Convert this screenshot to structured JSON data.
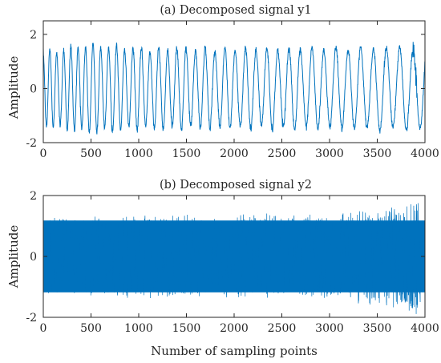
{
  "chart_data": [
    {
      "type": "line",
      "title": "(a) Decomposed signal y1",
      "xlabel": "",
      "ylabel": "Amplitude",
      "xlim": [
        0,
        4000
      ],
      "ylim": [
        -2,
        2.5
      ],
      "xticks": [
        0,
        500,
        1000,
        1500,
        2000,
        2500,
        3000,
        3500,
        4000
      ],
      "xtick_labels": [
        "0",
        "500",
        "1000",
        "1500",
        "2000",
        "2500",
        "3000",
        "3500",
        "4000"
      ],
      "yticks": [
        -2,
        0,
        2
      ],
      "ytick_labels": [
        "-2",
        "0",
        "2"
      ],
      "grid": false,
      "series": [
        {
          "color": "#0072bd",
          "description_kind": "chirp-like oscillation, ~41 cycles over 4000 samples, slowly decreasing frequency",
          "envelope_points": [
            {
              "x": 0,
              "amplitude": 1.35
            },
            {
              "x": 500,
              "amplitude": 1.6
            },
            {
              "x": 1000,
              "amplitude": 1.45
            },
            {
              "x": 2000,
              "amplitude": 1.45
            },
            {
              "x": 3000,
              "amplitude": 1.45
            },
            {
              "x": 4000,
              "amplitude": 1.5
            }
          ],
          "start_period": 70,
          "end_period": 145
        }
      ]
    },
    {
      "type": "line",
      "title": "(b) Decomposed signal y2",
      "xlabel": "Number of sampling points",
      "ylabel": "Amplitude",
      "xlim": [
        0,
        4000
      ],
      "ylim": [
        -2,
        2
      ],
      "xticks": [
        0,
        500,
        1000,
        1500,
        2000,
        2500,
        3000,
        3500,
        4000
      ],
      "xtick_labels": [
        "0",
        "500",
        "1000",
        "1500",
        "2000",
        "2500",
        "3000",
        "3500",
        "4000"
      ],
      "yticks": [
        -2,
        0,
        2
      ],
      "ytick_labels": [
        "-2",
        "0",
        "2"
      ],
      "grid": false,
      "series": [
        {
          "color": "#0072bd",
          "description_kind": "dense high-frequency noise band",
          "envelope_points": [
            {
              "x": 0,
              "amplitude": 1.25
            },
            {
              "x": 1500,
              "amplitude": 1.35
            },
            {
              "x": 3000,
              "amplitude": 1.35
            },
            {
              "x": 3900,
              "amplitude": 1.8
            },
            {
              "x": 4000,
              "amplitude": 1.3
            }
          ]
        }
      ]
    }
  ]
}
